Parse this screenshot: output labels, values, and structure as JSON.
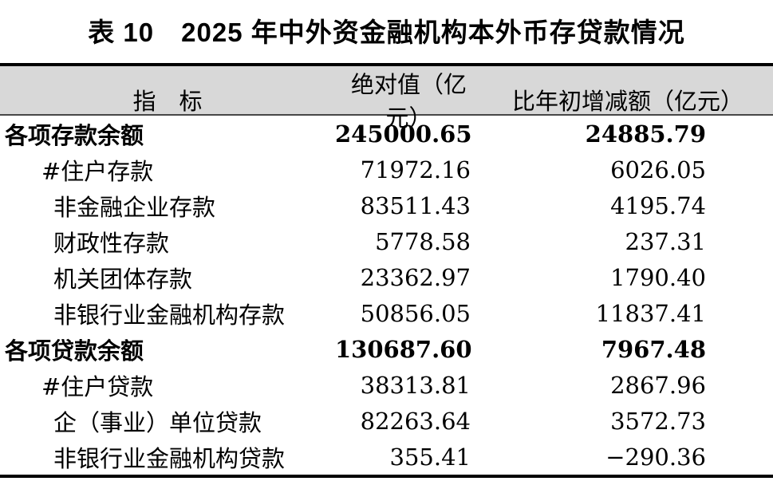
{
  "title": "表 10　2025 年中外资金融机构本外币存贷款情况",
  "colors": {
    "header_background": "#d8d8d8",
    "rule_color": "#000000",
    "text_color": "#000000"
  },
  "table": {
    "headers": [
      "指　标",
      "绝对值（亿元）",
      "比年初增减额（亿元）"
    ],
    "rows": [
      {
        "label": "各项存款余额",
        "absolute": "245000.65",
        "change": "24885.79",
        "bold": true,
        "indent": 0
      },
      {
        "label": "#住户存款",
        "absolute": "71972.16",
        "change": "6026.05",
        "bold": false,
        "indent": 1
      },
      {
        "label": "非金融企业存款",
        "absolute": "83511.43",
        "change": "4195.74",
        "bold": false,
        "indent": 2
      },
      {
        "label": "财政性存款",
        "absolute": "5778.58",
        "change": "237.31",
        "bold": false,
        "indent": 2
      },
      {
        "label": "机关团体存款",
        "absolute": "23362.97",
        "change": "1790.40",
        "bold": false,
        "indent": 2
      },
      {
        "label": "非银行业金融机构存款",
        "absolute": "50856.05",
        "change": "11837.41",
        "bold": false,
        "indent": 2
      },
      {
        "label": "各项贷款余额",
        "absolute": "130687.60",
        "change": "7967.48",
        "bold": true,
        "indent": 0
      },
      {
        "label": "#住户贷款",
        "absolute": "38313.81",
        "change": "2867.96",
        "bold": false,
        "indent": 1
      },
      {
        "label": "企（事业）单位贷款",
        "absolute": "82263.64",
        "change": "3572.73",
        "bold": false,
        "indent": 2
      },
      {
        "label": "非银行业金融机构贷款",
        "absolute": "355.41",
        "change": "−290.36",
        "bold": false,
        "indent": 2
      }
    ]
  }
}
